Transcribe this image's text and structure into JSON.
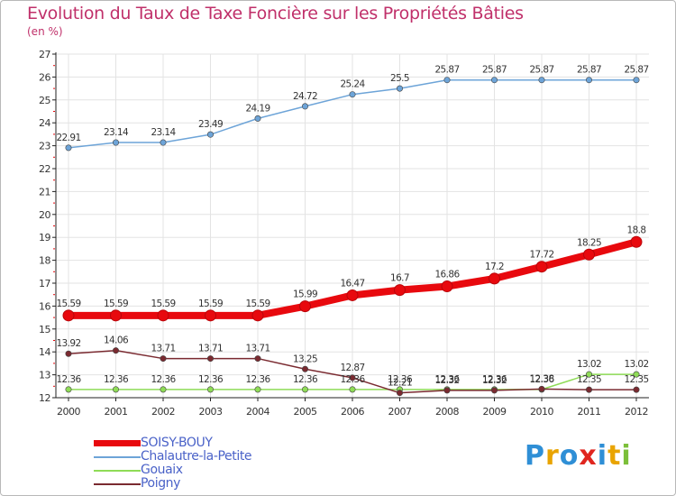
{
  "chart_data": {
    "type": "line",
    "title": "Evolution du Taux de Taxe Foncière sur les Propriétés Bâties",
    "unit_label": "(en %)",
    "xlabel": "",
    "ylabel": "",
    "ylim": [
      12,
      27
    ],
    "yticks": [
      12,
      13,
      14,
      15,
      16,
      17,
      18,
      19,
      20,
      21,
      22,
      23,
      24,
      25,
      26,
      27
    ],
    "categories": [
      "2000",
      "2001",
      "2002",
      "2003",
      "2004",
      "2005",
      "2006",
      "2007",
      "2008",
      "2009",
      "2010",
      "2011",
      "2012"
    ],
    "series": [
      {
        "name": "SOISY-BOUY",
        "color": "#e8090e",
        "thick": true,
        "values": [
          15.59,
          15.59,
          15.59,
          15.59,
          15.59,
          15.99,
          16.47,
          16.7,
          16.86,
          17.2,
          17.72,
          18.25,
          18.8
        ],
        "labels": [
          "15.59",
          "15.59",
          "15.59",
          "15.59",
          "15.59",
          "15.99",
          "16.47",
          "16.7",
          "16.86",
          "17.2",
          "17.72",
          "18.25",
          "18.8"
        ]
      },
      {
        "name": "Chalautre-la-Petite",
        "color": "#6da4d8",
        "thick": false,
        "values": [
          22.91,
          23.14,
          23.14,
          23.49,
          24.19,
          24.72,
          25.24,
          25.5,
          25.87,
          25.87,
          25.87,
          25.87,
          25.87
        ],
        "labels": [
          "22.91",
          "23.14",
          "23.14",
          "23.49",
          "24.19",
          "24.72",
          "25.24",
          "25.5",
          "25.87",
          "25.87",
          "25.87",
          "25.87",
          "25.87"
        ]
      },
      {
        "name": "Gouaix",
        "color": "#8fdc57",
        "thick": false,
        "values": [
          12.36,
          12.36,
          12.36,
          12.36,
          12.36,
          12.36,
          12.36,
          12.36,
          12.36,
          12.36,
          12.36,
          13.02,
          13.02
        ],
        "labels": [
          "12.36",
          "12.36",
          "12.36",
          "12.36",
          "12.36",
          "12.36",
          "12.36",
          "12.36",
          "12.36",
          "12.36",
          "12.36",
          "13.02",
          "13.02"
        ]
      },
      {
        "name": "Poigny",
        "color": "#7a2a30",
        "thick": false,
        "values": [
          13.92,
          14.06,
          13.71,
          13.71,
          13.71,
          13.25,
          12.87,
          12.21,
          12.32,
          12.32,
          12.38,
          12.35,
          12.35
        ],
        "labels": [
          "13.92",
          "14.06",
          "13.71",
          "13.71",
          "13.71",
          "13.25",
          "12.87",
          "12.21",
          "12.32",
          "12.32",
          "12.38",
          "12.35",
          "12.35"
        ]
      }
    ]
  },
  "logo": {
    "text": "Proxiti",
    "letters": [
      {
        "ch": "P",
        "color": "#2f8fd6"
      },
      {
        "ch": "r",
        "color": "#e9a400"
      },
      {
        "ch": "o",
        "color": "#2f8fd6"
      },
      {
        "ch": "x",
        "color": "#e0261f"
      },
      {
        "ch": "i",
        "color": "#2f8fd6"
      },
      {
        "ch": "t",
        "color": "#e9a400"
      },
      {
        "ch": "i",
        "color": "#7cbf3a"
      }
    ]
  }
}
